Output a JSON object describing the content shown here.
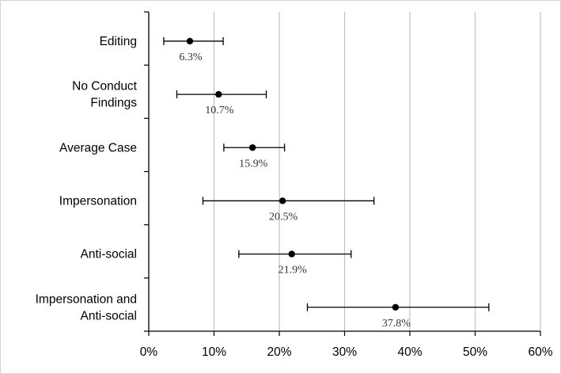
{
  "chart_data": {
    "type": "scatter",
    "orientation": "horizontal",
    "error_bars": true,
    "categories": [
      [
        "Editing"
      ],
      [
        "No Conduct",
        "Findings"
      ],
      [
        "Average Case"
      ],
      [
        "Impersonation"
      ],
      [
        "Anti-social"
      ],
      [
        "Impersonation and",
        "Anti-social"
      ]
    ],
    "series": [
      {
        "values": [
          6.3,
          10.7,
          15.9,
          20.5,
          21.9,
          37.8
        ],
        "lower": [
          2.3,
          4.3,
          11.5,
          8.3,
          13.8,
          24.3
        ],
        "upper": [
          11.4,
          18.0,
          20.8,
          34.5,
          31.0,
          52.1
        ],
        "data_labels": [
          "6.3%",
          "10.7%",
          "15.9%",
          "20.5%",
          "21.9%",
          "37.8%"
        ]
      }
    ],
    "xlim": [
      0,
      60
    ],
    "xticks": [
      0,
      10,
      20,
      30,
      40,
      50,
      60
    ],
    "xtick_labels": [
      "0%",
      "10%",
      "20%",
      "30%",
      "40%",
      "50%",
      "60%"
    ],
    "title": "",
    "xlabel": "",
    "ylabel": "",
    "grid": "vertical",
    "legend": "none",
    "colors": {
      "grid": "#c0c0c0",
      "axis": "#000000",
      "marker": "#000000",
      "label": "#333333"
    }
  }
}
